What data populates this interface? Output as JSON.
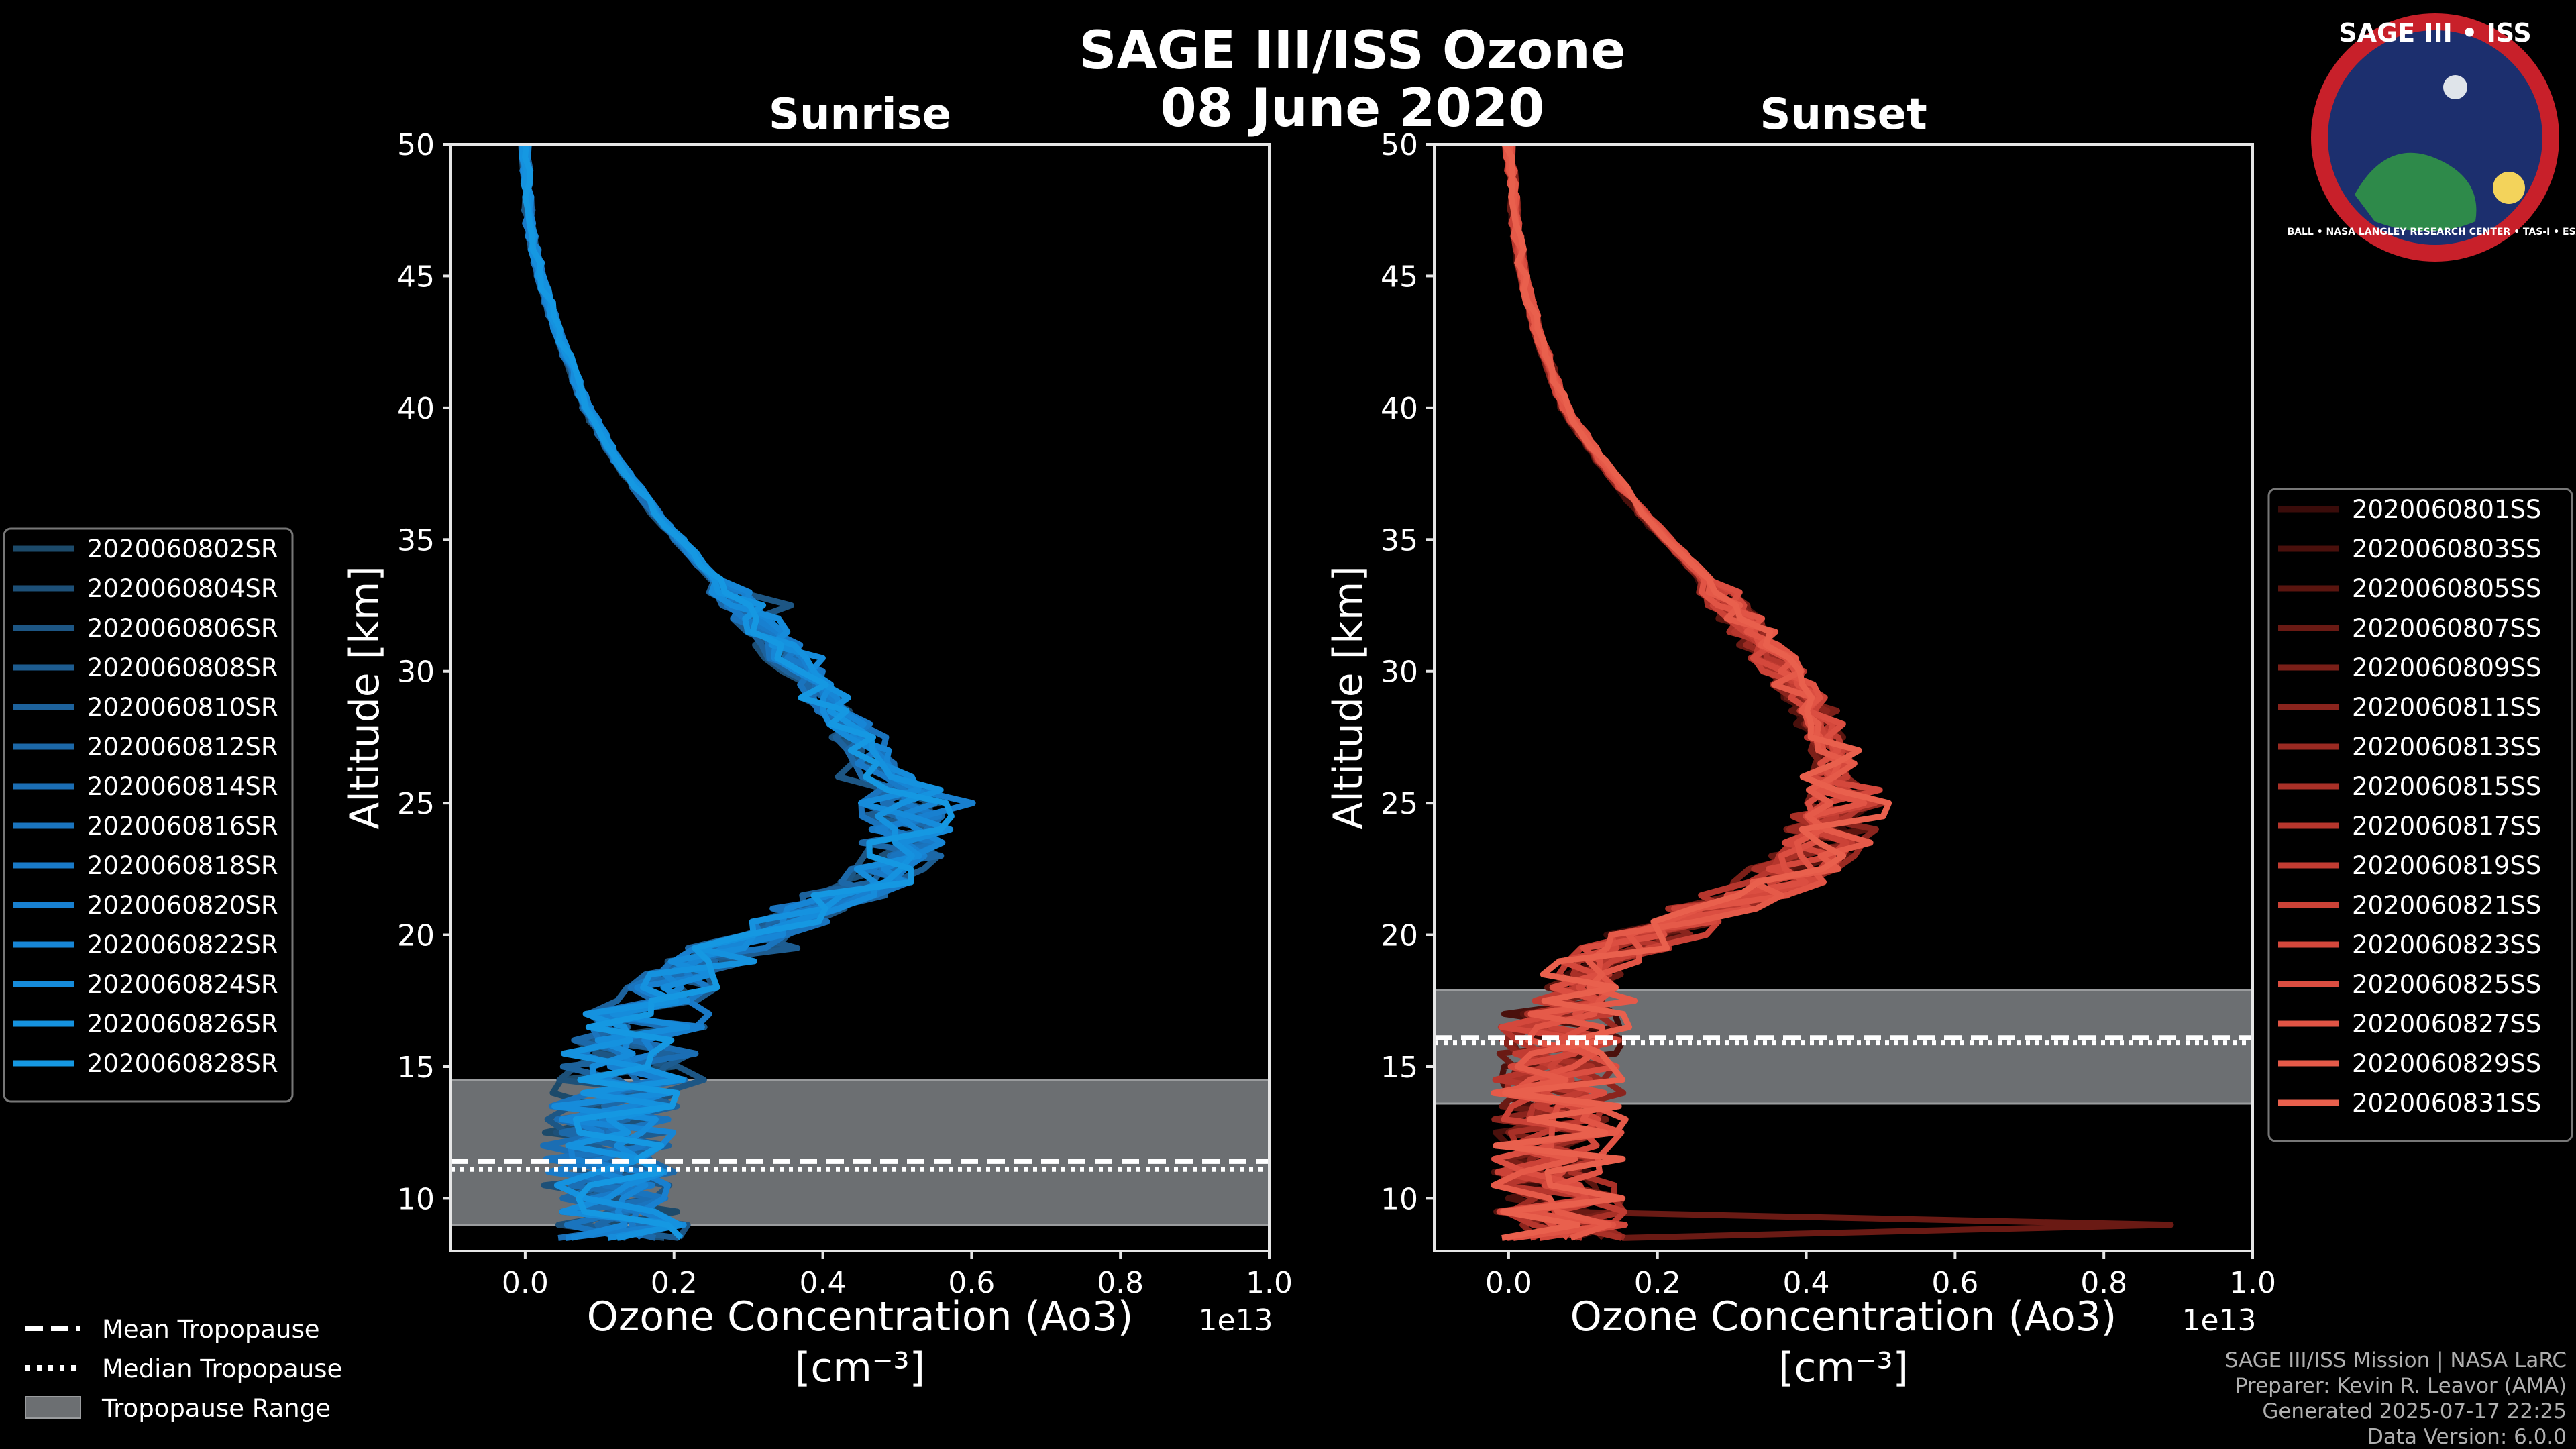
{
  "title_line1": "SAGE III/ISS Ozone",
  "title_line2": "08 June 2020",
  "logo": {
    "text": "SAGE III • ISS",
    "ring_text": "BALL • NASA LANGLEY RESEARCH CENTER • TAS-I • ESA"
  },
  "chart_data": [
    {
      "type": "line",
      "title": "Sunrise",
      "xlabel": "Ozone Concentration (Ao3)",
      "xlabel_units": "[cm⁻³]",
      "ylabel": "Altitude [km]",
      "x_offset_label": "1e13",
      "xlim": [
        -0.1,
        1.0
      ],
      "ylim": [
        8,
        50
      ],
      "xticks": [
        0.0,
        0.2,
        0.4,
        0.6,
        0.8,
        1.0
      ],
      "xtick_labels": [
        "0.0",
        "0.2",
        "0.4",
        "0.6",
        "0.8",
        "1.0"
      ],
      "yticks": [
        10,
        15,
        20,
        25,
        30,
        35,
        40,
        45,
        50
      ],
      "ytick_labels": [
        "10",
        "15",
        "20",
        "25",
        "30",
        "35",
        "40",
        "45",
        "50"
      ],
      "tropopause": {
        "mean_km": 11.4,
        "median_km": 11.1,
        "range_km": [
          9.0,
          14.5
        ]
      },
      "base_profile": {
        "altitude": [
          50,
          47,
          45,
          43,
          40,
          38,
          36,
          34,
          32,
          30,
          28,
          26,
          25,
          24,
          23,
          22,
          21,
          20,
          19,
          18,
          17,
          16,
          15,
          14,
          13,
          12,
          11,
          10,
          9,
          8.5
        ],
        "value": [
          0.0,
          0.005,
          0.02,
          0.04,
          0.08,
          0.12,
          0.17,
          0.23,
          0.3,
          0.36,
          0.42,
          0.47,
          0.49,
          0.5,
          0.49,
          0.45,
          0.38,
          0.3,
          0.24,
          0.19,
          0.16,
          0.14,
          0.13,
          0.12,
          0.11,
          0.11,
          0.11,
          0.11,
          0.12,
          0.12
        ]
      },
      "series": [
        {
          "name": "2020060802SR",
          "color": "#1c4a6a"
        },
        {
          "name": "2020060804SR",
          "color": "#1d5078"
        },
        {
          "name": "2020060806SR",
          "color": "#1d5684"
        },
        {
          "name": "2020060808SR",
          "color": "#1d5c90"
        },
        {
          "name": "2020060810SR",
          "color": "#1d629c"
        },
        {
          "name": "2020060812SR",
          "color": "#1c68a8"
        },
        {
          "name": "2020060814SR",
          "color": "#1b6eb4"
        },
        {
          "name": "2020060816SR",
          "color": "#1a74be"
        },
        {
          "name": "2020060818SR",
          "color": "#197ac8"
        },
        {
          "name": "2020060820SR",
          "color": "#1880d0"
        },
        {
          "name": "2020060822SR",
          "color": "#1786d6"
        },
        {
          "name": "2020060824SR",
          "color": "#168cdb"
        },
        {
          "name": "2020060826SR",
          "color": "#1592df"
        },
        {
          "name": "2020060828SR",
          "color": "#1598e2"
        }
      ]
    },
    {
      "type": "line",
      "title": "Sunset",
      "xlabel": "Ozone Concentration (Ao3)",
      "xlabel_units": "[cm⁻³]",
      "ylabel": "Altitude [km]",
      "x_offset_label": "1e13",
      "xlim": [
        -0.1,
        1.0
      ],
      "ylim": [
        8,
        50
      ],
      "xticks": [
        0.0,
        0.2,
        0.4,
        0.6,
        0.8,
        1.0
      ],
      "xtick_labels": [
        "0.0",
        "0.2",
        "0.4",
        "0.6",
        "0.8",
        "1.0"
      ],
      "yticks": [
        10,
        15,
        20,
        25,
        30,
        35,
        40,
        45,
        50
      ],
      "ytick_labels": [
        "10",
        "15",
        "20",
        "25",
        "30",
        "35",
        "40",
        "45",
        "50"
      ],
      "tropopause": {
        "mean_km": 16.1,
        "median_km": 15.9,
        "range_km": [
          13.6,
          17.9
        ]
      },
      "base_profile": {
        "altitude": [
          50,
          47,
          45,
          43,
          40,
          38,
          36,
          34,
          32,
          30,
          28,
          27,
          26,
          25,
          24,
          23,
          22,
          21,
          20,
          19,
          18,
          17,
          16,
          15,
          14,
          13,
          12,
          11,
          10,
          9,
          8.5
        ],
        "value": [
          0.0,
          0.01,
          0.02,
          0.04,
          0.08,
          0.13,
          0.19,
          0.26,
          0.33,
          0.39,
          0.44,
          0.46,
          0.47,
          0.47,
          0.46,
          0.43,
          0.38,
          0.29,
          0.2,
          0.13,
          0.09,
          0.07,
          0.07,
          0.07,
          0.07,
          0.07,
          0.07,
          0.07,
          0.07,
          0.07,
          0.07
        ]
      },
      "spike": {
        "altitude": 9.0,
        "value": 0.89
      },
      "series": [
        {
          "name": "2020060801SS",
          "color": "#3a0c0a"
        },
        {
          "name": "2020060803SS",
          "color": "#4a100c"
        },
        {
          "name": "2020060805SS",
          "color": "#5a150f"
        },
        {
          "name": "2020060807SS",
          "color": "#6a1a14"
        },
        {
          "name": "2020060809SS",
          "color": "#7a1f18"
        },
        {
          "name": "2020060811SS",
          "color": "#8a241d"
        },
        {
          "name": "2020060813SS",
          "color": "#9a2a22"
        },
        {
          "name": "2020060815SS",
          "color": "#a93027"
        },
        {
          "name": "2020060817SS",
          "color": "#b6362d"
        },
        {
          "name": "2020060819SS",
          "color": "#c13c32"
        },
        {
          "name": "2020060821SS",
          "color": "#cb4237"
        },
        {
          "name": "2020060823SS",
          "color": "#d4483c"
        },
        {
          "name": "2020060825SS",
          "color": "#db4e41"
        },
        {
          "name": "2020060827SS",
          "color": "#e15445"
        },
        {
          "name": "2020060829SS",
          "color": "#e55a49"
        },
        {
          "name": "2020060831SS",
          "color": "#e9604d"
        }
      ]
    }
  ],
  "shared_legend": [
    {
      "label": "Mean Tropopause",
      "style": "dashed"
    },
    {
      "label": "Median Tropopause",
      "style": "dotted"
    },
    {
      "label": "Tropopause Range",
      "style": "patch"
    }
  ],
  "footer": [
    "SAGE III/ISS Mission | NASA LaRC",
    "Preparer: Kevin R. Leavor (AMA)",
    "Generated 2025-07-17 22:25",
    "Data Version: 6.0.0"
  ]
}
